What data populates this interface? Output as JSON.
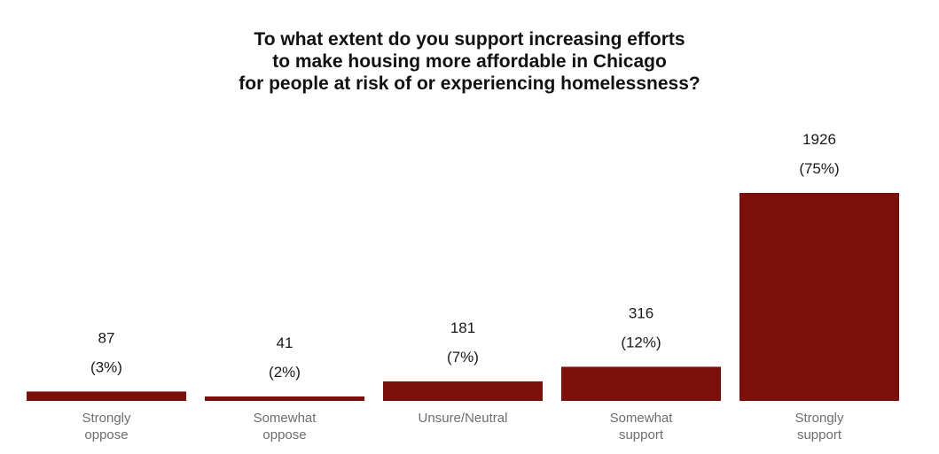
{
  "chart_data": {
    "type": "bar",
    "title_lines": [
      "To what extent do you support increasing efforts",
      "to make housing more affordable in Chicago",
      "for people at risk of or experiencing homelessness?"
    ],
    "categories": [
      [
        "Strongly",
        "oppose"
      ],
      [
        "Somewhat",
        "oppose"
      ],
      [
        "Unsure/Neutral"
      ],
      [
        "Somewhat",
        "support"
      ],
      [
        "Strongly",
        "support"
      ]
    ],
    "values": [
      87,
      41,
      181,
      316,
      1926
    ],
    "value_labels": [
      "87",
      "41",
      "181",
      "316",
      "1926"
    ],
    "percent_labels": [
      "(3%)",
      "(2%)",
      "(7%)",
      "(12%)",
      "(75%)"
    ],
    "xlabel": "",
    "ylabel": "",
    "ylim": [
      0,
      1926
    ],
    "grid": false,
    "legend": "none",
    "bar_color": "#7b0f0a"
  }
}
